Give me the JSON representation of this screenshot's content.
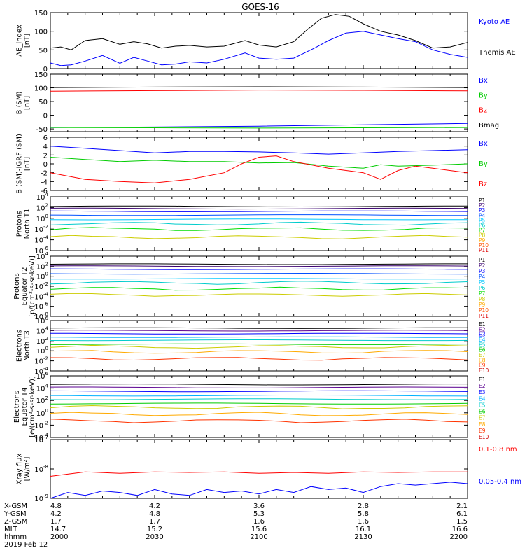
{
  "title": "GOES-16",
  "chart_data": [
    {
      "type": "line",
      "ylabel": [
        "AE_index",
        "[nT]"
      ],
      "ylim": [
        0,
        150
      ],
      "yticks": [
        0,
        50,
        100,
        150
      ],
      "ytick_labels": [
        "0",
        "50",
        "100",
        "150"
      ],
      "legend": [
        {
          "label": "Kyoto AE",
          "color": "#0000ff"
        },
        {
          "label": "Themis AE",
          "color": "#000000"
        }
      ],
      "series": [
        {
          "name": "Kyoto AE",
          "color": "#0000ff",
          "x": [
            0,
            3,
            6,
            10,
            15,
            20,
            24,
            28,
            32,
            36,
            40,
            45,
            50,
            56,
            60,
            65,
            70,
            76,
            80,
            85,
            90,
            95,
            100,
            105,
            110,
            115,
            120
          ],
          "y": [
            15,
            8,
            10,
            20,
            35,
            14,
            30,
            20,
            10,
            12,
            18,
            15,
            25,
            42,
            28,
            25,
            28,
            55,
            75,
            95,
            100,
            90,
            80,
            72,
            50,
            38,
            30
          ]
        },
        {
          "name": "Themis AE",
          "color": "#000000",
          "x": [
            0,
            3,
            6,
            10,
            15,
            20,
            24,
            28,
            32,
            36,
            40,
            45,
            50,
            56,
            60,
            65,
            70,
            74,
            78,
            82,
            86,
            90,
            95,
            100,
            105,
            110,
            115,
            120
          ],
          "y": [
            55,
            58,
            50,
            75,
            80,
            65,
            72,
            66,
            55,
            60,
            62,
            58,
            60,
            75,
            63,
            58,
            72,
            105,
            135,
            145,
            140,
            120,
            100,
            90,
            75,
            55,
            58,
            70
          ]
        }
      ]
    },
    {
      "type": "line",
      "ylabel": [
        "B (SM)",
        "[nT]"
      ],
      "ylim": [
        -60,
        150
      ],
      "yticks": [
        -50,
        0,
        50,
        100,
        150
      ],
      "ytick_labels": [
        "-50",
        "0",
        "50",
        "100",
        "150"
      ],
      "legend": [
        {
          "label": "Bx",
          "color": "#0000ff"
        },
        {
          "label": "By",
          "color": "#00cc00"
        },
        {
          "label": "Bz",
          "color": "#ff0000"
        },
        {
          "label": "Bmag",
          "color": "#000000"
        }
      ],
      "series": [
        {
          "name": "Bmag",
          "color": "#000000",
          "x": [
            0,
            30,
            60,
            90,
            120
          ],
          "y": [
            101,
            103,
            104,
            103,
            101
          ]
        },
        {
          "name": "Bz",
          "color": "#ff0000",
          "x": [
            0,
            30,
            60,
            90,
            120
          ],
          "y": [
            88,
            90,
            92,
            91,
            89
          ]
        },
        {
          "name": "Bx",
          "color": "#0000ff",
          "x": [
            0,
            30,
            60,
            90,
            120
          ],
          "y": [
            -45,
            -43,
            -40,
            -35,
            -30
          ]
        },
        {
          "name": "By",
          "color": "#00cc00",
          "x": [
            0,
            30,
            60,
            90,
            120
          ],
          "y": [
            -45,
            -46,
            -47,
            -46,
            -45
          ]
        }
      ]
    },
    {
      "type": "line",
      "ylabel": [
        "B (SM)-IGRF (SM)",
        "[nT]"
      ],
      "ylim": [
        -6,
        6
      ],
      "yticks": [
        -6,
        -4,
        -2,
        0,
        2,
        4,
        6
      ],
      "ytick_labels": [
        "-6",
        "-4",
        "-2",
        "0",
        "2",
        "4",
        "6"
      ],
      "legend": [
        {
          "label": "Bx",
          "color": "#0000ff"
        },
        {
          "label": "By",
          "color": "#00cc00"
        },
        {
          "label": "Bz",
          "color": "#ff0000"
        }
      ],
      "series": [
        {
          "name": "Bx",
          "color": "#0000ff",
          "x": [
            0,
            10,
            20,
            30,
            40,
            50,
            60,
            70,
            80,
            90,
            100,
            110,
            120
          ],
          "y": [
            4,
            3.5,
            3,
            2.5,
            2.8,
            2.8,
            2.7,
            2.5,
            2.2,
            2.5,
            2.8,
            3,
            3.2
          ]
        },
        {
          "name": "By",
          "color": "#00cc00",
          "x": [
            0,
            10,
            20,
            30,
            40,
            50,
            60,
            70,
            80,
            90,
            95,
            100,
            110,
            120
          ],
          "y": [
            1.5,
            1,
            0.5,
            0.8,
            0.5,
            0.5,
            0.2,
            0.3,
            -0.5,
            -1,
            -0.2,
            -0.5,
            -0.3,
            0
          ]
        },
        {
          "name": "Bz",
          "color": "#ff0000",
          "x": [
            0,
            10,
            20,
            30,
            40,
            50,
            55,
            60,
            65,
            70,
            80,
            90,
            95,
            100,
            105,
            110,
            120
          ],
          "y": [
            -2,
            -3.5,
            -4,
            -4.3,
            -3.5,
            -2,
            0,
            1.5,
            1.8,
            0.5,
            -1,
            -2,
            -3.5,
            -1.5,
            -0.5,
            -1,
            -2
          ]
        }
      ]
    },
    {
      "type": "line",
      "ylabel": [
        "Protons",
        "North T1"
      ],
      "ylog": true,
      "ylim_exp": [
        -6,
        4
      ],
      "yticks_exp": [
        -6,
        -4,
        -2,
        0,
        2,
        4
      ],
      "legend": [
        {
          "label": "P1",
          "color": "#000000"
        },
        {
          "label": "P2",
          "color": "#3a0070"
        },
        {
          "label": "P3",
          "color": "#0000ff"
        },
        {
          "label": "P4",
          "color": "#0050ff"
        },
        {
          "label": "P5",
          "color": "#00c8ff"
        },
        {
          "label": "P6",
          "color": "#00cccc"
        },
        {
          "label": "P7",
          "color": "#00dd00"
        },
        {
          "label": "P8",
          "color": "#cccc00"
        },
        {
          "label": "P9",
          "color": "#ffaa00"
        },
        {
          "label": "P10",
          "color": "#ff5500"
        },
        {
          "label": "P11",
          "color": "#dd0000"
        }
      ],
      "levels_exp": [
        2.2,
        1.8,
        1.3,
        0.6,
        -0.2,
        -1.0,
        -2.0,
        -3.5
      ]
    },
    {
      "type": "line",
      "ylabel": [
        "Protons",
        "Equator T2",
        "[p/(cm²-s-sr-keV)]"
      ],
      "ylog": true,
      "ylim_exp": [
        -8,
        4
      ],
      "yticks_exp": [
        -8,
        -6,
        -4,
        -2,
        0,
        2,
        4
      ],
      "legend": [
        {
          "label": "P1",
          "color": "#000000"
        },
        {
          "label": "P2",
          "color": "#3a0070"
        },
        {
          "label": "P3",
          "color": "#0000ff"
        },
        {
          "label": "P4",
          "color": "#0050ff"
        },
        {
          "label": "P5",
          "color": "#00c8ff"
        },
        {
          "label": "P6",
          "color": "#00cccc"
        },
        {
          "label": "P7",
          "color": "#00dd00"
        },
        {
          "label": "P8",
          "color": "#cccc00"
        },
        {
          "label": "P9",
          "color": "#ffaa00"
        },
        {
          "label": "P10",
          "color": "#ff5500"
        },
        {
          "label": "P11",
          "color": "#dd0000"
        }
      ],
      "levels_exp": [
        2.4,
        2.0,
        1.4,
        0.5,
        -0.5,
        -1.3,
        -2.5,
        -3.7
      ]
    },
    {
      "type": "line",
      "ylabel": [
        "Electrons",
        "North T3"
      ],
      "ylog": true,
      "ylim_exp": [
        -4,
        6
      ],
      "yticks_exp": [
        -4,
        -2,
        0,
        2,
        4,
        6
      ],
      "legend": [
        {
          "label": "E1",
          "color": "#000000"
        },
        {
          "label": "E2",
          "color": "#5a0090"
        },
        {
          "label": "E3",
          "color": "#0000ff"
        },
        {
          "label": "E4",
          "color": "#00b0ff"
        },
        {
          "label": "E5",
          "color": "#00cccc"
        },
        {
          "label": "E6",
          "color": "#00cc00"
        },
        {
          "label": "E7",
          "color": "#cccc00"
        },
        {
          "label": "E8",
          "color": "#ffaa00"
        },
        {
          "label": "E9",
          "color": "#ff3300"
        },
        {
          "label": "E10",
          "color": "#cc0000"
        }
      ],
      "levels_exp": [
        4.5,
        4.0,
        3.4,
        2.7,
        2.1,
        1.3,
        0.8,
        -0.2,
        -1.6
      ]
    },
    {
      "type": "line",
      "ylabel": [
        "Electrons",
        "Equator T4",
        "[e/(cm²-s-sr-keV)]"
      ],
      "ylog": true,
      "ylim_exp": [
        -4,
        6
      ],
      "yticks_exp": [
        -4,
        -2,
        0,
        2,
        4,
        6
      ],
      "legend": [
        {
          "label": "E1",
          "color": "#000000"
        },
        {
          "label": "E2",
          "color": "#5a0090"
        },
        {
          "label": "E3",
          "color": "#0000ff"
        },
        {
          "label": "E4",
          "color": "#00b0ff"
        },
        {
          "label": "E5",
          "color": "#00cccc"
        },
        {
          "label": "E6",
          "color": "#00cc00"
        },
        {
          "label": "E7",
          "color": "#cccc00"
        },
        {
          "label": "E8",
          "color": "#ffaa00"
        },
        {
          "label": "E9",
          "color": "#ff3300"
        },
        {
          "label": "E10",
          "color": "#cc0000"
        }
      ],
      "levels_exp": [
        4.6,
        4.1,
        3.5,
        2.8,
        2.2,
        1.5,
        0.9,
        -0.2,
        -1.3
      ]
    },
    {
      "type": "line",
      "ylabel": [
        "Xray flux",
        "[W/m²]"
      ],
      "ylog": true,
      "ylim_exp": [
        -9,
        -7
      ],
      "yticks_exp": [
        -9,
        -8,
        -7
      ],
      "legend": [
        {
          "label": "0.1-0.8 nm",
          "color": "#ff0000"
        },
        {
          "label": "0.05-0.4 nm",
          "color": "#0000ff"
        }
      ],
      "series": [
        {
          "name": "0.1-0.8 nm",
          "color": "#ff0000",
          "x": [
            0,
            10,
            20,
            30,
            40,
            50,
            60,
            70,
            80,
            90,
            100,
            110,
            120
          ],
          "y_exp": [
            -8.25,
            -8.1,
            -8.15,
            -8.1,
            -8.12,
            -8.1,
            -8.15,
            -8.12,
            -8.15,
            -8.1,
            -8.12,
            -8.1,
            -8.1
          ]
        },
        {
          "name": "0.05-0.4 nm",
          "color": "#0000ff",
          "x": [
            0,
            5,
            10,
            15,
            20,
            25,
            30,
            35,
            40,
            45,
            50,
            55,
            60,
            65,
            70,
            75,
            80,
            85,
            90,
            95,
            100,
            105,
            110,
            115,
            120
          ],
          "y_exp": [
            -9.0,
            -8.8,
            -8.9,
            -8.75,
            -8.8,
            -8.9,
            -8.7,
            -8.85,
            -8.9,
            -8.7,
            -8.8,
            -8.75,
            -8.85,
            -8.7,
            -8.8,
            -8.6,
            -8.7,
            -8.65,
            -8.8,
            -8.6,
            -8.5,
            -8.55,
            -8.5,
            -8.45,
            -8.5
          ]
        }
      ]
    }
  ],
  "x_axis": {
    "range_min": [
      0,
      120
    ],
    "ticks_min": [
      0,
      30,
      60,
      90,
      120
    ],
    "row_labels": [
      "X-GSM",
      "Y-GSM",
      "Z-GSM",
      "MLT",
      "hhmm"
    ],
    "columns": [
      [
        "4.8",
        "4.2",
        "1.7",
        "14.7",
        "2000"
      ],
      [
        "4.2",
        "4.8",
        "1.7",
        "15.2",
        "2030"
      ],
      [
        "3.6",
        "5.3",
        "1.6",
        "15.6",
        "2100"
      ],
      [
        "2.8",
        "5.8",
        "1.6",
        "16.1",
        "2130"
      ],
      [
        "2.1",
        "6.1",
        "1.5",
        "16.6",
        "2200"
      ]
    ],
    "date": "2019 Feb 12"
  }
}
